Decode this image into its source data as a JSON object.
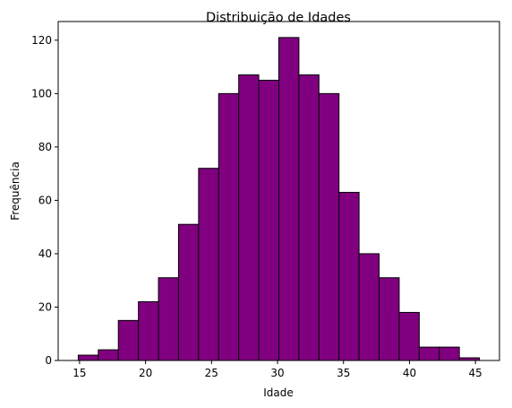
{
  "chart_data": {
    "type": "histogram",
    "title": "Distribuição de Idades",
    "xlabel": "Idade",
    "ylabel": "Frequência",
    "bar_color": "#800080",
    "edge_color": "#000000",
    "bin_edges": [
      14.9,
      16.42,
      17.94,
      19.46,
      20.98,
      22.5,
      24.02,
      25.54,
      27.06,
      28.58,
      30.1,
      31.62,
      33.14,
      34.66,
      36.18,
      37.7,
      39.22,
      40.74,
      42.26,
      43.78,
      45.3
    ],
    "counts": [
      2,
      4,
      15,
      22,
      31,
      51,
      72,
      100,
      107,
      105,
      121,
      107,
      100,
      63,
      40,
      31,
      18,
      5,
      5,
      1
    ],
    "xlim": [
      13.38,
      46.82
    ],
    "ylim": [
      0,
      127
    ],
    "xticks": [
      15,
      20,
      25,
      30,
      35,
      40,
      45
    ],
    "yticks": [
      0,
      20,
      40,
      60,
      80,
      100,
      120
    ],
    "grid": false,
    "legend": false
  }
}
